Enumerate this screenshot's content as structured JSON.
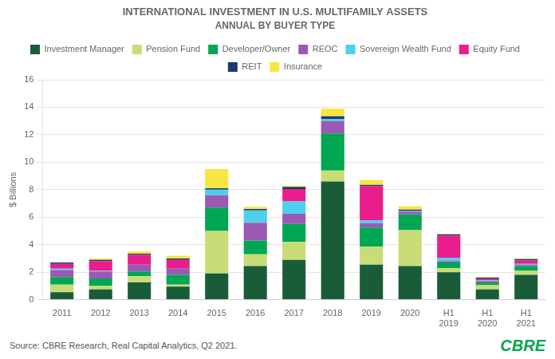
{
  "chart_data": {
    "type": "bar",
    "title": "INTERNATIONAL INVESTMENT IN U.S. MULTIFAMILY ASSETS",
    "subtitle": "ANNUAL BY BUYER TYPE",
    "ylabel": "$ Billions",
    "annotations": [
      "Source: CBRE Research, Real Capital Analytics, Q2 2021.",
      "CBRE"
    ],
    "categories": [
      "2011",
      "2012",
      "2013",
      "2014",
      "2015",
      "2016",
      "2017",
      "2018",
      "2019",
      "2020",
      "H1\n2019",
      "H1\n2020",
      "H1\n2021"
    ],
    "series": [
      {
        "name": "Investment Manager",
        "color": "#1a5c38",
        "values": [
          0.55,
          0.75,
          1.25,
          0.95,
          1.9,
          2.45,
          2.9,
          8.6,
          2.55,
          2.45,
          2.0,
          0.75,
          1.8
        ]
      },
      {
        "name": "Pension Fund",
        "color": "#c8dc78",
        "values": [
          0.55,
          0.25,
          0.45,
          0.15,
          3.1,
          0.85,
          1.3,
          0.8,
          1.3,
          2.6,
          0.3,
          0.3,
          0.3
        ]
      },
      {
        "name": "Developer/Owner",
        "color": "#00a651",
        "values": [
          0.55,
          0.55,
          0.35,
          0.7,
          1.7,
          1.0,
          1.3,
          2.7,
          1.4,
          1.15,
          0.4,
          0.2,
          0.35
        ]
      },
      {
        "name": "REOC",
        "color": "#9b59b6",
        "values": [
          0.5,
          0.5,
          0.5,
          0.45,
          0.9,
          1.3,
          0.75,
          0.9,
          0.3,
          0.2,
          0.1,
          0.1,
          0.1
        ]
      },
      {
        "name": "Sovereign Wealth Fund",
        "color": "#4dcfee",
        "values": [
          0.1,
          0.05,
          0.0,
          0.0,
          0.4,
          0.9,
          0.9,
          0.15,
          0.2,
          0.05,
          0.25,
          0.05,
          0.05
        ]
      },
      {
        "name": "Equity Fund",
        "color": "#e91e8c",
        "values": [
          0.35,
          0.7,
          0.7,
          0.65,
          0.0,
          0.0,
          0.9,
          0.0,
          2.5,
          0.0,
          1.6,
          0.1,
          0.25
        ]
      },
      {
        "name": "REIT",
        "color": "#1a3a6b",
        "values": [
          0.1,
          0.1,
          0.1,
          0.1,
          0.1,
          0.1,
          0.15,
          0.2,
          0.1,
          0.1,
          0.1,
          0.1,
          0.1
        ]
      },
      {
        "name": "Insurance",
        "color": "#f5e642",
        "values": [
          0.0,
          0.1,
          0.15,
          0.2,
          1.4,
          0.15,
          0.1,
          0.55,
          0.35,
          0.25,
          0.05,
          0.05,
          0.05
        ]
      }
    ],
    "ylim": [
      0,
      16
    ],
    "yticks": [
      0,
      2,
      4,
      6,
      8,
      10,
      12,
      14,
      16
    ],
    "stacked": true,
    "grid": true,
    "legend": "top"
  }
}
